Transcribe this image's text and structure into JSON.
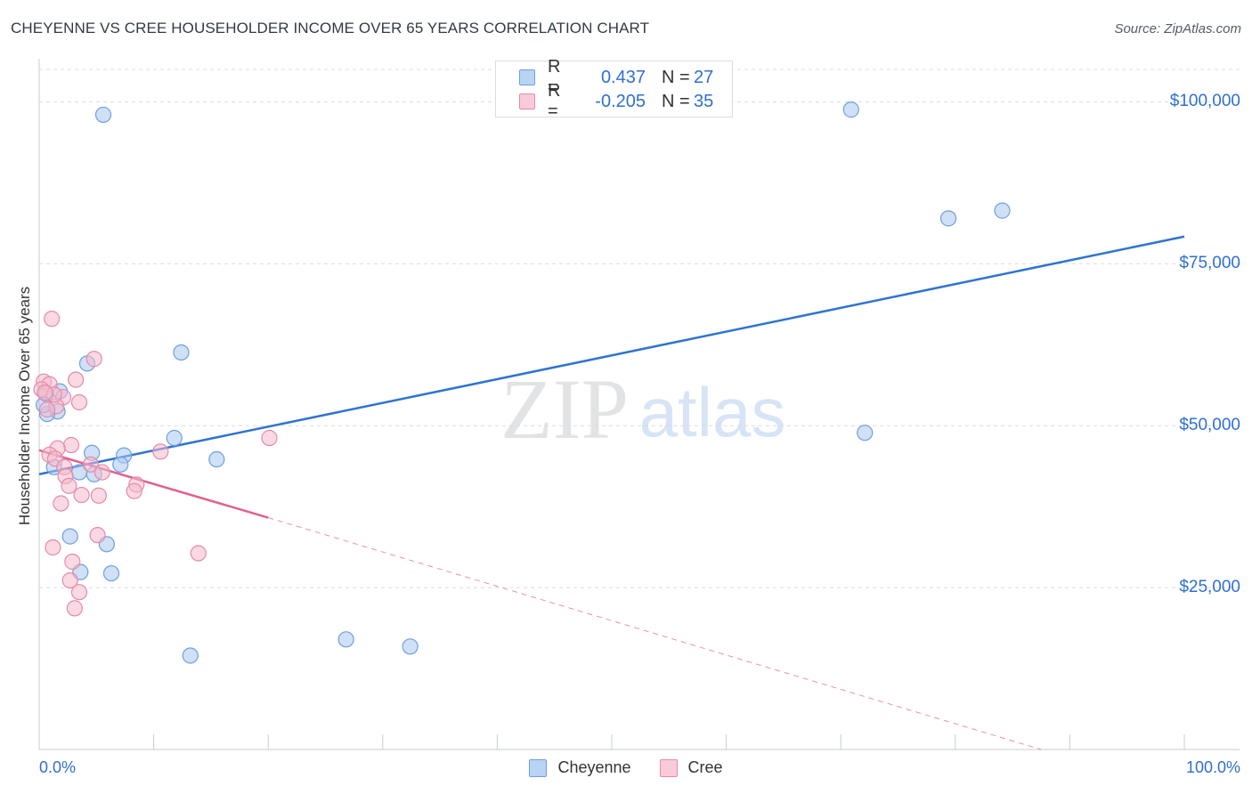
{
  "title": "CHEYENNE VS CREE HOUSEHOLDER INCOME OVER 65 YEARS CORRELATION CHART",
  "source": "Source: ZipAtlas.com",
  "watermark": {
    "zip": "ZIP",
    "atlas": "atlas"
  },
  "legend": {
    "rows": [
      {
        "r_label": "R =",
        "r_value": "0.437",
        "n_label": "N =",
        "n_value": "27"
      },
      {
        "r_label": "R =",
        "r_value": "-0.205",
        "n_label": "N =",
        "n_value": "35"
      }
    ]
  },
  "bottom_legend": [
    "Cheyenne",
    "Cree"
  ],
  "colors": {
    "cheyenne_fill": "#a9c8f0",
    "cheyenne_stroke": "#6d9fe0",
    "cheyenne_line": "#2f74d0",
    "cree_fill": "#f6b9cc",
    "cree_stroke": "#e58aa8",
    "cree_line": "#e0608e",
    "axis_label": "#2f6fd0",
    "grid": "#d8dbe0"
  },
  "chart_data": {
    "type": "scatter",
    "title": "CHEYENNE VS CREE HOUSEHOLDER INCOME OVER 65 YEARS CORRELATION CHART",
    "xlabel": "",
    "ylabel": "Householder Income Over 65 years",
    "xlim": [
      0,
      100
    ],
    "ylim": [
      0,
      105000
    ],
    "x_tick_labels": [
      "0.0%",
      "100.0%"
    ],
    "y_ticks": [
      25000,
      50000,
      75000,
      100000
    ],
    "y_tick_labels": [
      "$25,000",
      "$50,000",
      "$75,000",
      "$100,000"
    ],
    "grid": true,
    "legend_position": "top-center",
    "series": [
      {
        "name": "Cheyenne",
        "points": [
          [
            5.6,
            98000
          ],
          [
            70.9,
            98800
          ],
          [
            79.4,
            82000
          ],
          [
            84.1,
            83200
          ],
          [
            12.4,
            61300
          ],
          [
            4.2,
            59600
          ],
          [
            0.6,
            54900
          ],
          [
            1.8,
            55300
          ],
          [
            1.6,
            52200
          ],
          [
            0.7,
            51800
          ],
          [
            11.8,
            48100
          ],
          [
            72.1,
            48900
          ],
          [
            4.6,
            45800
          ],
          [
            7.4,
            45400
          ],
          [
            15.5,
            44800
          ],
          [
            7.1,
            44000
          ],
          [
            1.3,
            43600
          ],
          [
            3.5,
            42800
          ],
          [
            4.8,
            42500
          ],
          [
            2.7,
            32900
          ],
          [
            5.9,
            31700
          ],
          [
            3.6,
            27400
          ],
          [
            6.3,
            27200
          ],
          [
            26.8,
            17000
          ],
          [
            32.4,
            15900
          ],
          [
            13.2,
            14500
          ],
          [
            0.4,
            53200
          ]
        ],
        "trend": {
          "x": [
            0,
            100
          ],
          "y": [
            42500,
            79200
          ]
        }
      },
      {
        "name": "Cree",
        "points": [
          [
            1.1,
            66500
          ],
          [
            4.8,
            60300
          ],
          [
            3.2,
            57100
          ],
          [
            0.4,
            56800
          ],
          [
            0.9,
            56400
          ],
          [
            0.2,
            55600
          ],
          [
            2.1,
            54400
          ],
          [
            3.5,
            53600
          ],
          [
            1.5,
            53000
          ],
          [
            0.7,
            52500
          ],
          [
            20.1,
            48100
          ],
          [
            2.8,
            47000
          ],
          [
            1.6,
            46500
          ],
          [
            10.6,
            46000
          ],
          [
            0.9,
            45500
          ],
          [
            1.4,
            44900
          ],
          [
            4.5,
            44000
          ],
          [
            2.2,
            43600
          ],
          [
            5.5,
            42800
          ],
          [
            2.3,
            42200
          ],
          [
            8.5,
            40900
          ],
          [
            2.6,
            40700
          ],
          [
            8.3,
            39900
          ],
          [
            3.7,
            39300
          ],
          [
            5.2,
            39200
          ],
          [
            1.9,
            38000
          ],
          [
            5.1,
            33100
          ],
          [
            1.2,
            31200
          ],
          [
            13.9,
            30300
          ],
          [
            2.9,
            29000
          ],
          [
            2.7,
            26100
          ],
          [
            3.5,
            24300
          ],
          [
            3.1,
            21800
          ],
          [
            1.3,
            54800
          ],
          [
            0.5,
            55100
          ]
        ],
        "trend": {
          "x": [
            0,
            20
          ],
          "y": [
            46200,
            35800
          ]
        },
        "trend_extension": {
          "x": [
            20,
            87.5
          ],
          "y": [
            35800,
            0
          ]
        }
      }
    ]
  }
}
